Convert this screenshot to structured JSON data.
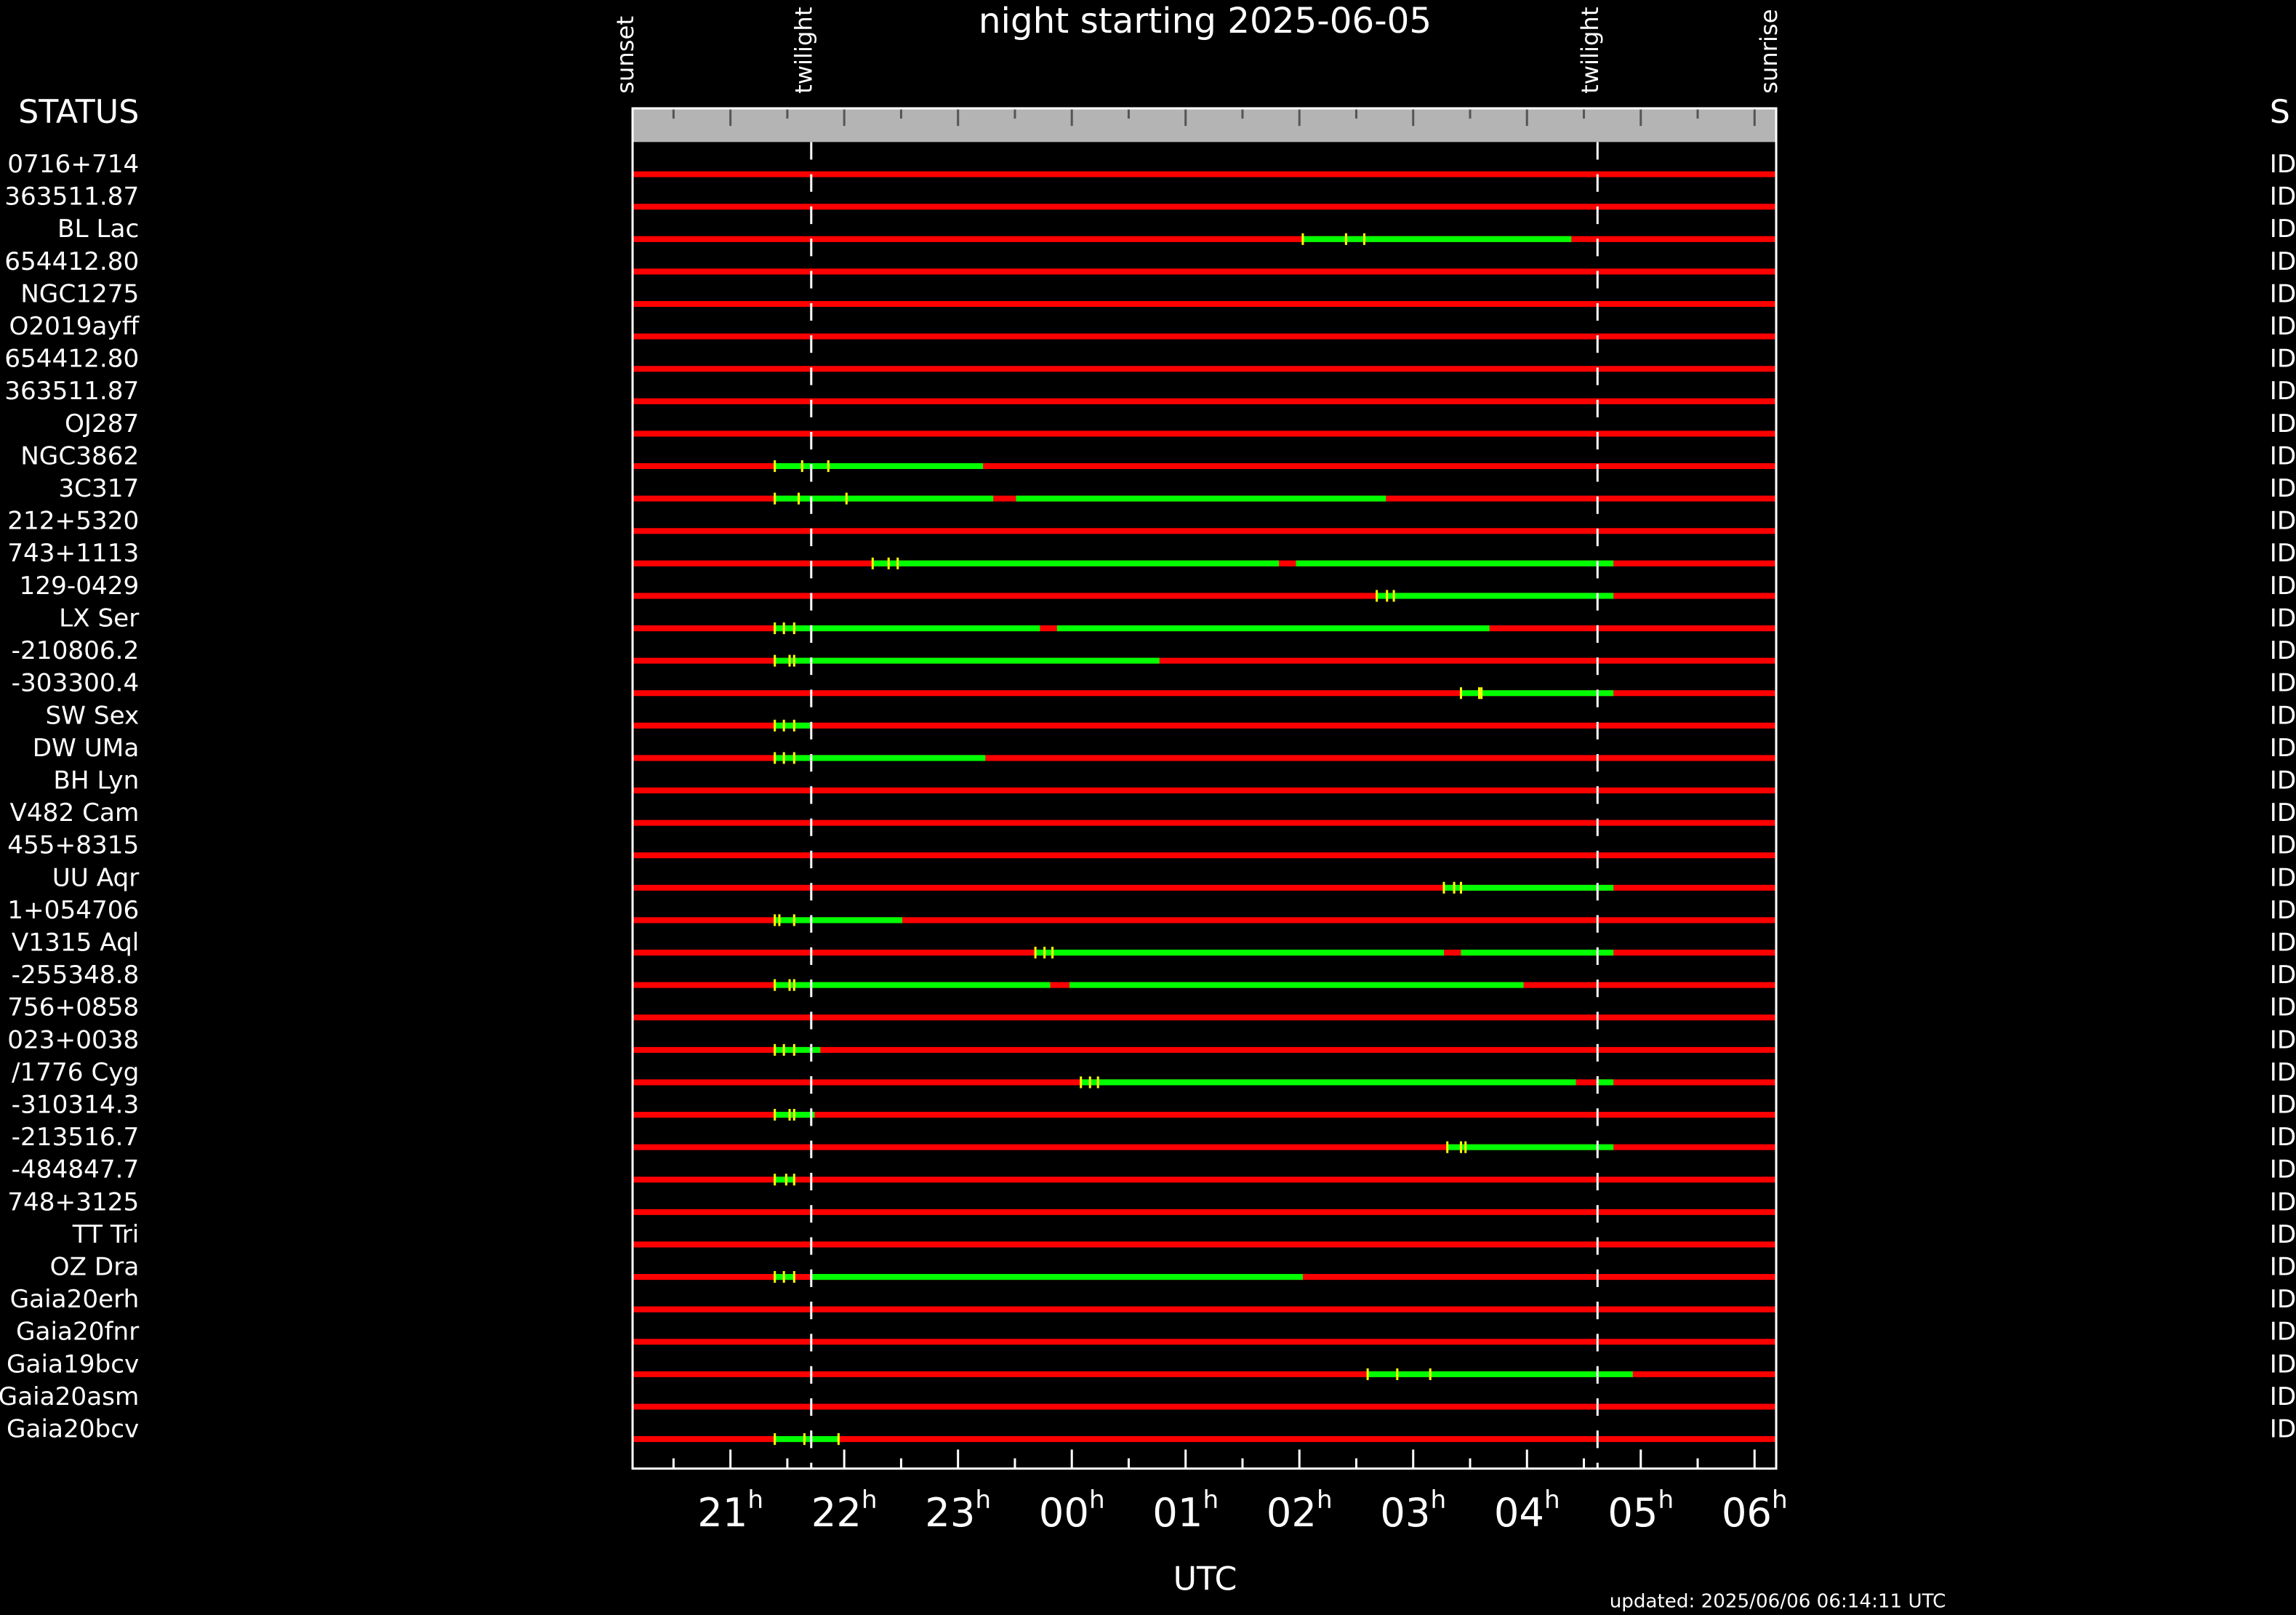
{
  "chart_data": {
    "type": "timeline",
    "title": "night starting 2025-06-05",
    "xlabel": "UTC",
    "updated": "updated: 2025/06/06 06:14:11 UTC",
    "left_header": "STATUS",
    "right_header": "S",
    "xlim": [
      20.14,
      30.19
    ],
    "xticks": [
      21,
      22,
      23,
      {
        "value": 24,
        "label": "00"
      },
      {
        "value": 25,
        "label": "01"
      },
      {
        "value": 26,
        "label": "02"
      },
      {
        "value": 27,
        "label": "03"
      },
      {
        "value": 28,
        "label": "04"
      },
      {
        "value": 29,
        "label": "05"
      },
      {
        "value": 30,
        "label": "06"
      }
    ],
    "minor_xticks": [
      20.5,
      21.5,
      22.5,
      23.5,
      24.5,
      25.5,
      26.5,
      27.5,
      28.5,
      29.5
    ],
    "tick_suffix": "h",
    "events": [
      {
        "label": "sunset",
        "value": 20.14
      },
      {
        "label": "twilight",
        "value": 21.71
      },
      {
        "label": "twilight",
        "value": 28.62
      },
      {
        "label": "sunrise",
        "value": 30.19
      }
    ],
    "colors": {
      "unobservable": "#ff0000",
      "window": "#00ff00",
      "marker": "#ffff00",
      "band": "#b4b4b4"
    },
    "rows": [
      {
        "name": "0716+714",
        "status": "ID",
        "windows": [],
        "markers": []
      },
      {
        "name": "363511.87",
        "status": "ID",
        "windows": [],
        "markers": []
      },
      {
        "name": "BL Lac",
        "status": "ID",
        "windows": [
          [
            26.03,
            28.39
          ]
        ],
        "markers": [
          26.03,
          26.41,
          26.57
        ]
      },
      {
        "name": "654412.80",
        "status": "ID",
        "windows": [],
        "markers": []
      },
      {
        "name": "NGC1275",
        "status": "ID",
        "windows": [],
        "markers": []
      },
      {
        "name": "O2019ayff",
        "status": "ID",
        "windows": [],
        "markers": []
      },
      {
        "name": "654412.80",
        "status": "ID",
        "windows": [],
        "markers": []
      },
      {
        "name": "363511.87",
        "status": "ID",
        "windows": [],
        "markers": []
      },
      {
        "name": "OJ287",
        "status": "ID",
        "windows": [],
        "markers": []
      },
      {
        "name": "NGC3862",
        "status": "ID",
        "windows": [
          [
            21.38,
            23.22
          ]
        ],
        "markers": [
          21.39,
          21.63,
          21.86
        ]
      },
      {
        "name": "3C317",
        "status": "ID",
        "windows": [
          [
            21.38,
            23.31
          ],
          [
            23.51,
            26.76
          ]
        ],
        "markers": [
          21.39,
          21.6,
          22.02
        ]
      },
      {
        "name": "212+5320",
        "status": "ID",
        "windows": [],
        "markers": []
      },
      {
        "name": "743+1113",
        "status": "ID",
        "windows": [
          [
            22.25,
            25.82
          ],
          [
            25.97,
            28.76
          ]
        ],
        "markers": [
          22.25,
          22.39,
          22.47
        ]
      },
      {
        "name": "129-0429",
        "status": "ID",
        "windows": [
          [
            26.67,
            28.76
          ]
        ],
        "markers": [
          26.68,
          26.77,
          26.83
        ]
      },
      {
        "name": "LX Ser",
        "status": "ID",
        "windows": [
          [
            21.38,
            23.72
          ],
          [
            23.87,
            27.67
          ]
        ],
        "markers": [
          21.39,
          21.47,
          21.56
        ]
      },
      {
        "name": "-210806.2",
        "status": "ID",
        "windows": [
          [
            21.38,
            24.77
          ]
        ],
        "markers": [
          21.39,
          21.52,
          21.56
        ]
      },
      {
        "name": "-303300.4",
        "status": "ID",
        "windows": [
          [
            27.42,
            28.76
          ]
        ],
        "markers": [
          27.42,
          27.58,
          27.6
        ]
      },
      {
        "name": "SW Sex",
        "status": "ID",
        "windows": [
          [
            21.38,
            21.7
          ]
        ],
        "markers": [
          21.39,
          21.47,
          21.56
        ]
      },
      {
        "name": "DW UMa",
        "status": "ID",
        "windows": [
          [
            21.38,
            23.24
          ]
        ],
        "markers": [
          21.39,
          21.47,
          21.56
        ]
      },
      {
        "name": "BH Lyn",
        "status": "ID",
        "windows": [],
        "markers": []
      },
      {
        "name": "V482 Cam",
        "status": "ID",
        "windows": [],
        "markers": []
      },
      {
        "name": "455+8315",
        "status": "ID",
        "windows": [],
        "markers": []
      },
      {
        "name": "UU Aqr",
        "status": "ID",
        "windows": [
          [
            27.27,
            28.76
          ]
        ],
        "markers": [
          27.27,
          27.36,
          27.42
        ]
      },
      {
        "name": "1+054706",
        "status": "ID",
        "windows": [
          [
            21.38,
            22.51
          ]
        ],
        "markers": [
          21.39,
          21.43,
          21.56
        ]
      },
      {
        "name": "V1315 Aql",
        "status": "ID",
        "windows": [
          [
            23.68,
            27.27
          ],
          [
            27.42,
            28.76
          ]
        ],
        "markers": [
          23.68,
          23.76,
          23.83
        ]
      },
      {
        "name": "-255348.8",
        "status": "ID",
        "windows": [
          [
            21.38,
            23.81
          ],
          [
            23.98,
            27.97
          ]
        ],
        "markers": [
          21.39,
          21.52,
          21.56
        ]
      },
      {
        "name": "756+0858",
        "status": "ID",
        "windows": [],
        "markers": []
      },
      {
        "name": "023+0038",
        "status": "ID",
        "windows": [
          [
            21.38,
            21.79
          ]
        ],
        "markers": [
          21.39,
          21.47,
          21.56
        ]
      },
      {
        "name": "/1776 Cyg",
        "status": "ID",
        "windows": [
          [
            24.08,
            28.43
          ],
          [
            28.61,
            28.76
          ]
        ],
        "markers": [
          24.08,
          24.16,
          24.23
        ]
      },
      {
        "name": "-310314.3",
        "status": "ID",
        "windows": [
          [
            21.38,
            21.74
          ]
        ],
        "markers": [
          21.39,
          21.52,
          21.56
        ]
      },
      {
        "name": "-213516.7",
        "status": "ID",
        "windows": [
          [
            27.3,
            28.76
          ]
        ],
        "markers": [
          27.3,
          27.42,
          27.46
        ]
      },
      {
        "name": "-484847.7",
        "status": "ID",
        "windows": [
          [
            21.38,
            21.56
          ]
        ],
        "markers": [
          21.39,
          21.49,
          21.56
        ]
      },
      {
        "name": "748+3125",
        "status": "ID",
        "windows": [],
        "markers": []
      },
      {
        "name": "TT Tri",
        "status": "ID",
        "windows": [],
        "markers": []
      },
      {
        "name": "OZ Dra",
        "status": "ID",
        "windows": [
          [
            21.38,
            21.56
          ],
          [
            21.7,
            26.03
          ]
        ],
        "markers": [
          21.39,
          21.47,
          21.56
        ]
      },
      {
        "name": "Gaia20erh",
        "status": "ID",
        "windows": [],
        "markers": []
      },
      {
        "name": "Gaia20fnr",
        "status": "ID",
        "windows": [],
        "markers": []
      },
      {
        "name": "Gaia19bcv",
        "status": "ID",
        "windows": [
          [
            26.6,
            28.93
          ]
        ],
        "markers": [
          26.6,
          26.86,
          27.15
        ]
      },
      {
        "name": "Gaia20asm",
        "status": "ID",
        "windows": [],
        "markers": []
      },
      {
        "name": "Gaia20bcv",
        "status": "ID",
        "windows": [
          [
            21.38,
            21.95
          ]
        ],
        "markers": [
          21.39,
          21.65,
          21.95
        ]
      }
    ]
  }
}
